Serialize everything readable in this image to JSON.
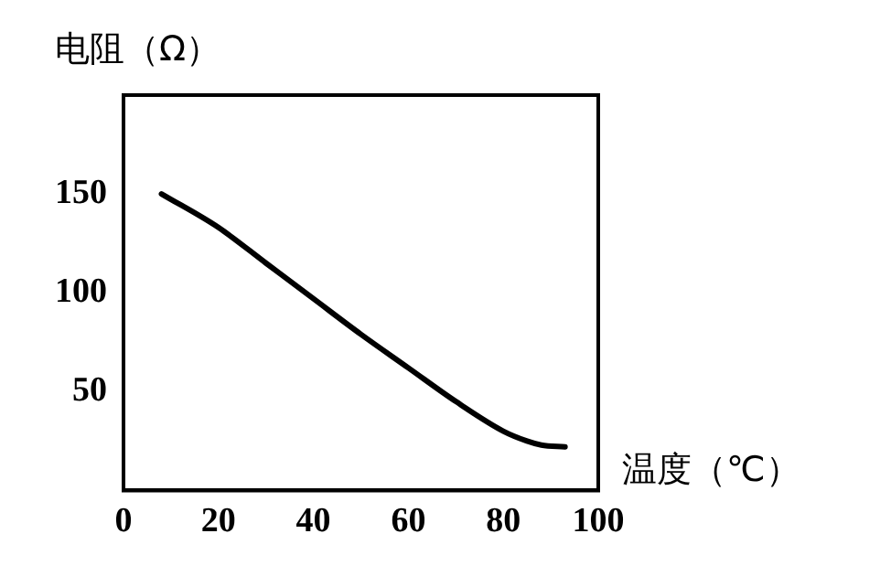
{
  "chart_data": {
    "type": "line",
    "xlabel": "温度（℃）",
    "ylabel": "电阻（Ω）",
    "x": [
      8,
      20,
      30,
      40,
      50,
      60,
      70,
      80,
      85,
      88,
      93
    ],
    "series": [
      {
        "color": "#000000",
        "values": [
          150,
          133,
          115,
          97,
          79,
          62,
          45,
          30,
          25,
          23,
          22
        ]
      }
    ],
    "xlim": [
      0,
      100
    ],
    "xticks": [
      0,
      20,
      40,
      60,
      80,
      100
    ],
    "ylim": [
      0,
      200
    ],
    "yticks": [
      50,
      100,
      150
    ],
    "grid": false,
    "legend": false,
    "marker": "none",
    "line_style": "solid"
  }
}
